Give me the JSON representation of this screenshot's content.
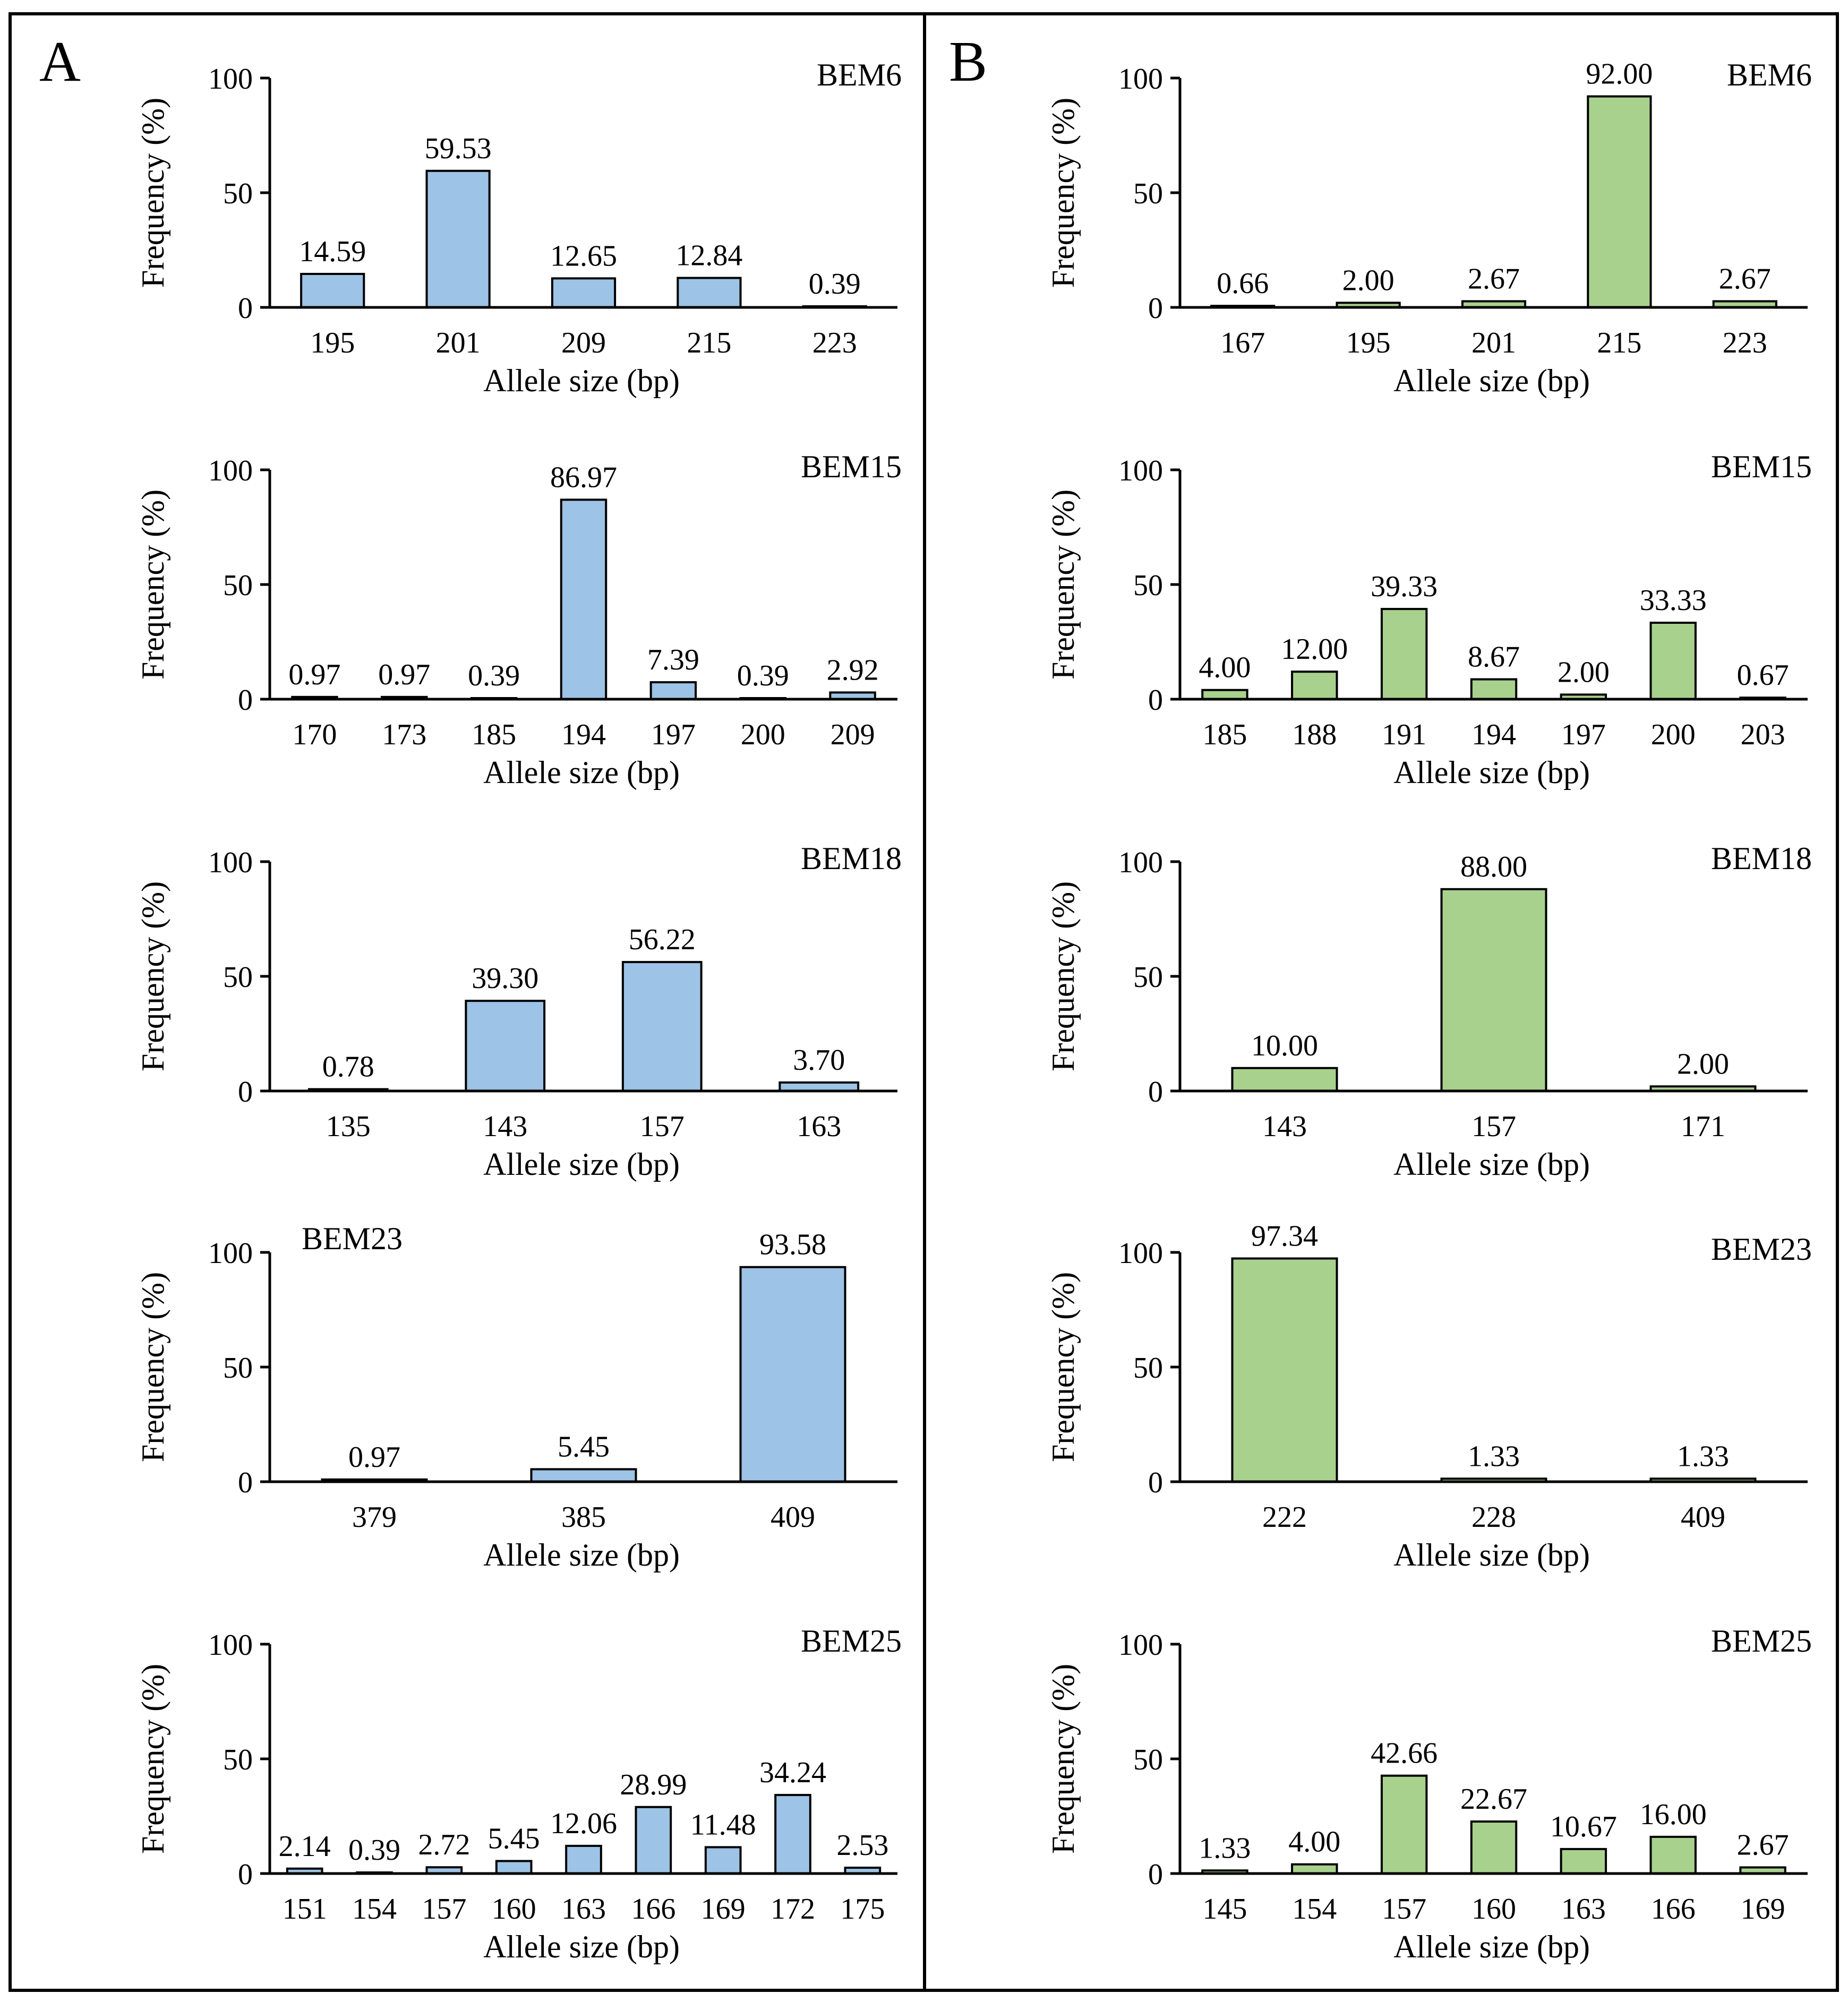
{
  "panels": [
    {
      "label": "A",
      "color": "#9dc3e6"
    },
    {
      "label": "B",
      "color": "#a9d18e"
    }
  ],
  "chart_data": [
    {
      "panel": "A",
      "type": "bar",
      "title": "BEM6",
      "title_position": "top-right",
      "ylabel": "Frequency (%)",
      "xlabel": "Allele size (bp)",
      "ylim": [
        0,
        100
      ],
      "yticks": [
        "0",
        "50",
        "100"
      ],
      "categories": [
        "195",
        "201",
        "209",
        "215",
        "223"
      ],
      "values": [
        14.59,
        59.53,
        12.65,
        12.84,
        0.39
      ],
      "labels": [
        "14.59",
        "59.53",
        "12.65",
        "12.84",
        "0.39"
      ]
    },
    {
      "panel": "A",
      "type": "bar",
      "title": "BEM15",
      "title_position": "top-right",
      "ylabel": "Frequency (%)",
      "xlabel": "Allele size (bp)",
      "ylim": [
        0,
        100
      ],
      "yticks": [
        "0",
        "50",
        "100"
      ],
      "categories": [
        "170",
        "173",
        "185",
        "194",
        "197",
        "200",
        "209"
      ],
      "values": [
        0.97,
        0.97,
        0.39,
        86.97,
        7.39,
        0.39,
        2.92
      ],
      "labels": [
        "0.97",
        "0.97",
        "0.39",
        "86.97",
        "7.39",
        "0.39",
        "2.92"
      ]
    },
    {
      "panel": "A",
      "type": "bar",
      "title": "BEM18",
      "title_position": "top-right",
      "ylabel": "Frequency (%)",
      "xlabel": "Allele size (bp)",
      "ylim": [
        0,
        100
      ],
      "yticks": [
        "0",
        "50",
        "100"
      ],
      "categories": [
        "135",
        "143",
        "157",
        "163"
      ],
      "values": [
        0.78,
        39.3,
        56.22,
        3.7
      ],
      "labels": [
        "0.78",
        "39.30",
        "56.22",
        "3.70"
      ]
    },
    {
      "panel": "A",
      "type": "bar",
      "title": "BEM23",
      "title_position": "top-left",
      "ylabel": "Frequency (%)",
      "xlabel": "Allele size (bp)",
      "ylim": [
        0,
        100
      ],
      "yticks": [
        "0",
        "50",
        "100"
      ],
      "categories": [
        "379",
        "385",
        "409"
      ],
      "values": [
        0.97,
        5.45,
        93.58
      ],
      "labels": [
        "0.97",
        "5.45",
        "93.58"
      ]
    },
    {
      "panel": "A",
      "type": "bar",
      "title": "BEM25",
      "title_position": "top-right",
      "ylabel": "Frequency (%)",
      "xlabel": "Allele size (bp)",
      "ylim": [
        0,
        100
      ],
      "yticks": [
        "0",
        "50",
        "100"
      ],
      "categories": [
        "151",
        "154",
        "157",
        "160",
        "163",
        "166",
        "169",
        "172",
        "175"
      ],
      "values": [
        2.14,
        0.39,
        2.72,
        5.45,
        12.06,
        28.99,
        11.48,
        34.24,
        2.53
      ],
      "labels": [
        "2.14",
        "0.39",
        "2.72",
        "5.45",
        "12.06",
        "28.99",
        "11.48",
        "34.24",
        "2.53"
      ]
    },
    {
      "panel": "B",
      "type": "bar",
      "title": "BEM6",
      "title_position": "top-right",
      "ylabel": "Frequency (%)",
      "xlabel": "Allele size (bp)",
      "ylim": [
        0,
        100
      ],
      "yticks": [
        "0",
        "50",
        "100"
      ],
      "categories": [
        "167",
        "195",
        "201",
        "215",
        "223"
      ],
      "values": [
        0.66,
        2.0,
        2.67,
        92.0,
        2.67
      ],
      "labels": [
        "0.66",
        "2.00",
        "2.67",
        "92.00",
        "2.67"
      ]
    },
    {
      "panel": "B",
      "type": "bar",
      "title": "BEM15",
      "title_position": "top-right",
      "ylabel": "Frequency (%)",
      "xlabel": "Allele size (bp)",
      "ylim": [
        0,
        100
      ],
      "yticks": [
        "0",
        "50",
        "100"
      ],
      "categories": [
        "185",
        "188",
        "191",
        "194",
        "197",
        "200",
        "203"
      ],
      "values": [
        4.0,
        12.0,
        39.33,
        8.67,
        2.0,
        33.33,
        0.67
      ],
      "labels": [
        "4.00",
        "12.00",
        "39.33",
        "8.67",
        "2.00",
        "33.33",
        "0.67"
      ]
    },
    {
      "panel": "B",
      "type": "bar",
      "title": "BEM18",
      "title_position": "top-right",
      "ylabel": "Frequency (%)",
      "xlabel": "Allele size (bp)",
      "ylim": [
        0,
        100
      ],
      "yticks": [
        "0",
        "50",
        "100"
      ],
      "categories": [
        "143",
        "157",
        "171"
      ],
      "values": [
        10.0,
        88.0,
        2.0
      ],
      "labels": [
        "10.00",
        "88.00",
        "2.00"
      ]
    },
    {
      "panel": "B",
      "type": "bar",
      "title": "BEM23",
      "title_position": "top-right",
      "ylabel": "Frequency (%)",
      "xlabel": "Allele size (bp)",
      "ylim": [
        0,
        100
      ],
      "yticks": [
        "0",
        "50",
        "100"
      ],
      "categories": [
        "222",
        "228",
        "409"
      ],
      "values": [
        97.34,
        1.33,
        1.33
      ],
      "labels": [
        "97.34",
        "1.33",
        "1.33"
      ]
    },
    {
      "panel": "B",
      "type": "bar",
      "title": "BEM25",
      "title_position": "top-right",
      "ylabel": "Frequency (%)",
      "xlabel": "Allele size (bp)",
      "ylim": [
        0,
        100
      ],
      "yticks": [
        "0",
        "50",
        "100"
      ],
      "categories": [
        "145",
        "154",
        "157",
        "160",
        "163",
        "166",
        "169"
      ],
      "values": [
        1.33,
        4.0,
        42.66,
        22.67,
        10.67,
        16.0,
        2.67
      ],
      "labels": [
        "1.33",
        "4.00",
        "42.66",
        "22.67",
        "10.67",
        "16.00",
        "2.67"
      ]
    }
  ]
}
